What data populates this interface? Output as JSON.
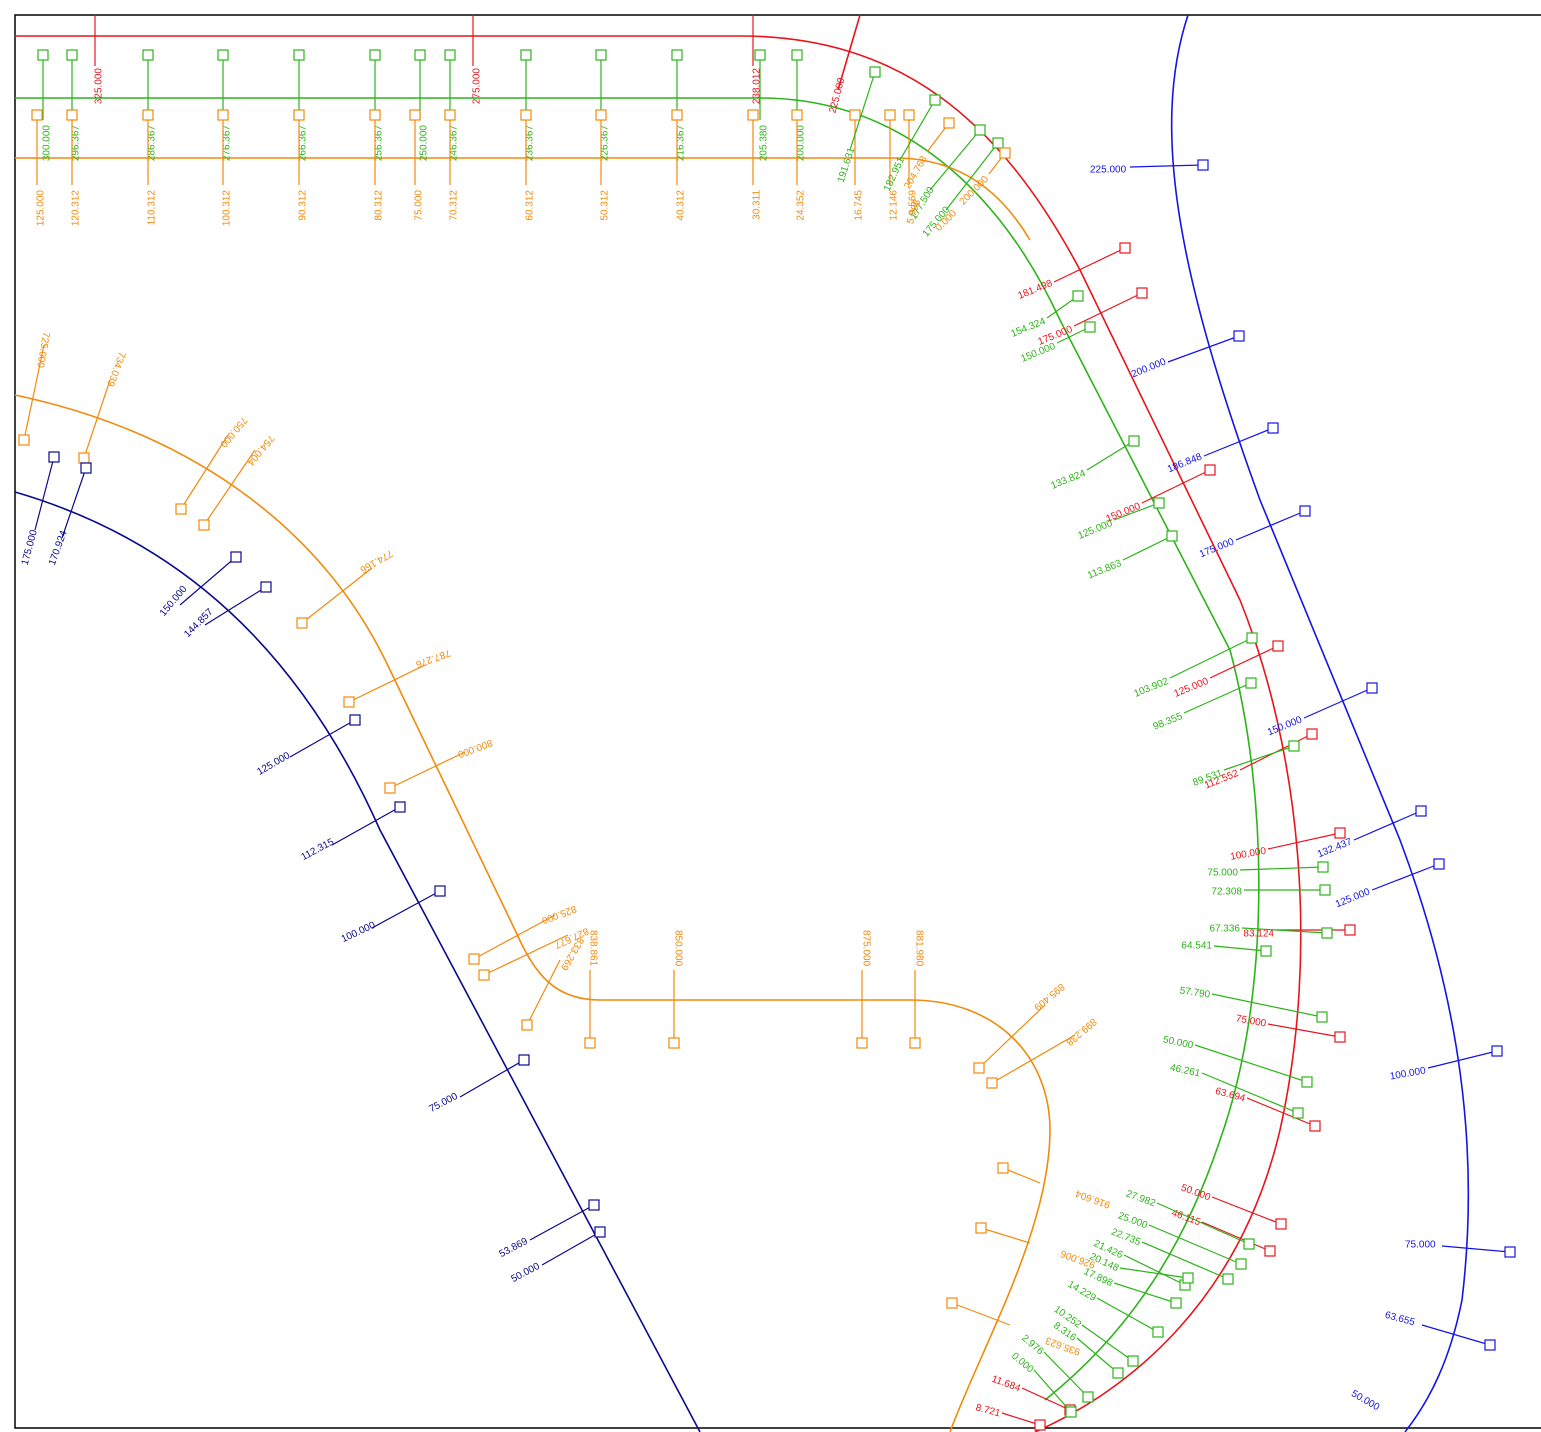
{
  "colors": {
    "red": "#e8141c",
    "green": "#2db31a",
    "orange": "#f28a0c",
    "blue": "#1414e6",
    "navy": "#0a0a8c"
  },
  "labels": {
    "red_top": [
      "325.000",
      "275.000",
      "238.012"
    ],
    "green_top": [
      "300.000",
      "296.367",
      "286.367",
      "276.367",
      "266.367",
      "256.367",
      "250.000",
      "246.367",
      "236.367",
      "226.367",
      "216.367",
      "205.380",
      "200.000"
    ],
    "orange_top": [
      "125.000",
      "120.312",
      "110.312",
      "100.312",
      "90.312",
      "80.312",
      "75.000",
      "70.312",
      "60.312",
      "50.312",
      "40.312",
      "30.311",
      "24.352",
      "16.745",
      "12.146",
      "9.569"
    ],
    "red": [
      "225.000",
      "181.498",
      "175.000",
      "150.000",
      "125.000",
      "112.552",
      "100.000",
      "83.124",
      "75.000",
      "63.694",
      "50.000",
      "46.115",
      "11.684",
      "8.721"
    ],
    "green": [
      "191.631",
      "182.951",
      "177.500",
      "175.000",
      "154.324",
      "150.000",
      "133.824",
      "125.000",
      "113.863",
      "103.902",
      "98.355",
      "89.531",
      "75.000",
      "72.308",
      "67.336",
      "64.541",
      "57.790",
      "50.000",
      "46.261",
      "27.982",
      "25.000",
      "22.735",
      "21.426",
      "20.148",
      "17.898",
      "14.229",
      "10.252",
      "8.316",
      "2.976",
      "0.000"
    ],
    "orange": [
      "204.768",
      "200.000",
      "5.788",
      "0.000",
      "725.000",
      "734.039",
      "750.000",
      "754.004",
      "774.166",
      "787.276",
      "800.000",
      "825.000",
      "827.677",
      "833.269",
      "838.861",
      "850.000",
      "875.000",
      "881.980",
      "895.409",
      "899.238",
      "916.604",
      "926.006",
      "935.623"
    ],
    "navy": [
      "175.000",
      "170.924",
      "150.000",
      "144.857",
      "125.000",
      "112.315",
      "100.000",
      "75.000",
      "53.869",
      "50.000"
    ],
    "blue": [
      "225.000",
      "200.000",
      "186.848",
      "175.000",
      "150.000",
      "132.437",
      "125.000",
      "100.000",
      "75.000",
      "63.655",
      "50.000"
    ]
  }
}
